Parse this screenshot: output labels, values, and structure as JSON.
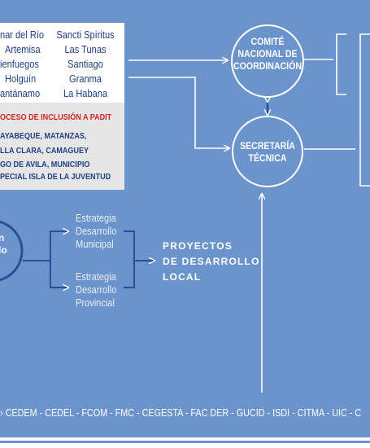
{
  "provinces": {
    "col1": [
      "nar del Río",
      "Artemisa",
      "ienfuegos",
      "Holguín",
      "antánamo"
    ],
    "col2": [
      "Sancti Spíritus",
      "Las Tunas",
      "Santiago",
      "Granma",
      "La Habana"
    ]
  },
  "inclusion": {
    "title": "OCESO DE INCLUSIÓN A PADIT",
    "lines": [
      "AYABEQUE, MATANZAS,",
      "LLA CLARA, CAMAGUEY",
      "GO DE AVILA, MUNICIPIO",
      "PECIAL ISLA DE LA JUVENTUD"
    ]
  },
  "nodes": {
    "comite": [
      "COMITÉ",
      "NACIONAL DE",
      "COORDINACIÓN"
    ],
    "secretaria": [
      "SECRETARÍA",
      "TÉCNICA"
    ],
    "left_circle": [
      "n",
      "lo"
    ]
  },
  "strategies": {
    "municipal": [
      "Estrategia",
      "Desarrollo",
      "Municipal"
    ],
    "provincial": [
      "Estrategia",
      "Desarrollo",
      "Provincial"
    ]
  },
  "proyectos": [
    "PROYECTOS",
    "DE DESARROLLO",
    "LOCAL"
  ],
  "footer": "› CEDEM - CEDEL - FCOM - FMC - CEGESTA - FAC DER - GUCID - ISDI - CITMA - UIC - C",
  "colors": {
    "background": "#6b93cc",
    "text_blue": "#1f3f86",
    "highlight_red": "#d32222",
    "panel_gray": "#e6e6e6"
  }
}
